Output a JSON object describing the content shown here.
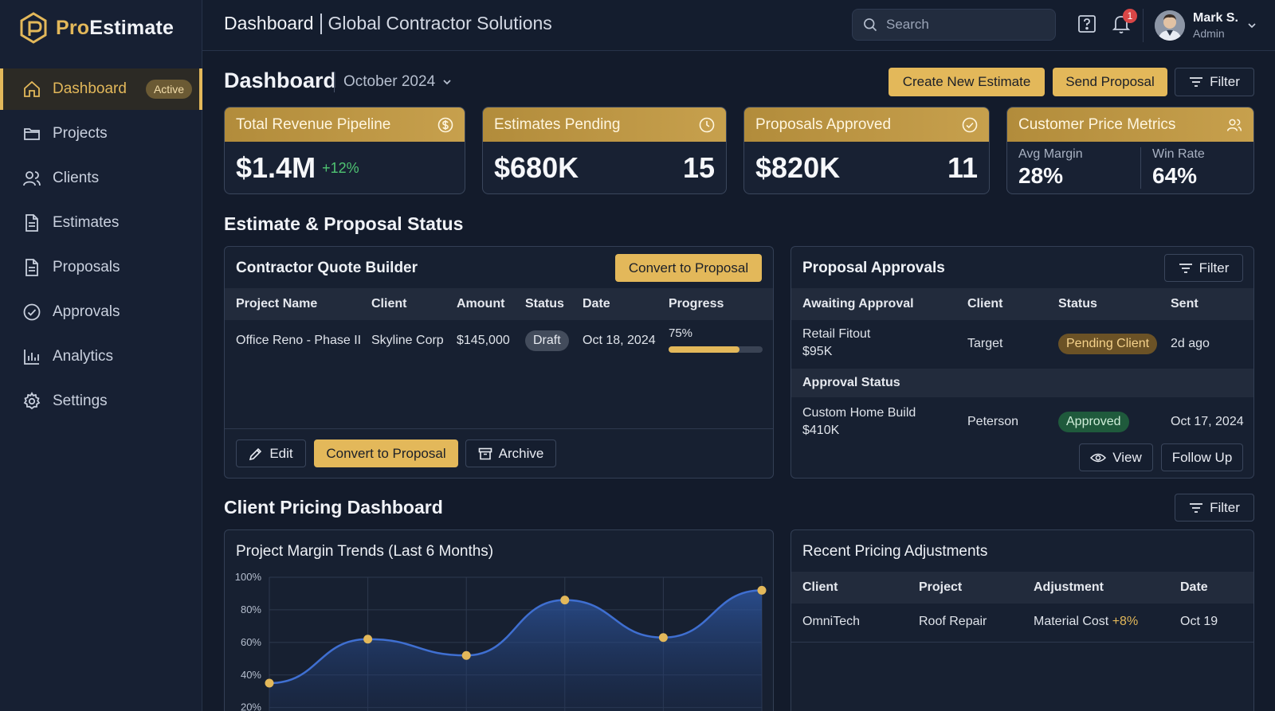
{
  "brand": {
    "prefix": "Pro",
    "suffix": "Estimate"
  },
  "sidebar": {
    "active_badge": "Active",
    "items": [
      {
        "label": "Dashboard",
        "icon": "home-icon"
      },
      {
        "label": "Projects",
        "icon": "folder-icon"
      },
      {
        "label": "Clients",
        "icon": "users-icon"
      },
      {
        "label": "Estimates",
        "icon": "document-icon"
      },
      {
        "label": "Proposals",
        "icon": "document-icon"
      },
      {
        "label": "Approvals",
        "icon": "check-circle-icon"
      },
      {
        "label": "Analytics",
        "icon": "bar-chart-icon"
      },
      {
        "label": "Settings",
        "icon": "gear-icon"
      }
    ]
  },
  "topbar": {
    "title": "Dashboard",
    "org": "Global Contractor Solutions",
    "search_placeholder": "Search",
    "notification_count": "1",
    "user": {
      "name": "Mark S.",
      "role": "Admin"
    }
  },
  "header": {
    "title": "Dashboard",
    "period": "October 2024",
    "create_label": "Create New Estimate",
    "send_label": "Send Proposal",
    "filter_label": "Filter"
  },
  "kpis": {
    "revenue": {
      "title": "Total Revenue Pipeline",
      "value": "$1.4M",
      "delta": "+12%"
    },
    "pending": {
      "title": "Estimates Pending",
      "value": "$680K",
      "count": "15"
    },
    "approved": {
      "title": "Proposals Approved",
      "value": "$820K",
      "count": "11"
    },
    "metrics": {
      "title": "Customer Price Metrics",
      "margin_label": "Avg Margin",
      "margin_value": "28%",
      "win_label": "Win Rate",
      "win_value": "64%"
    }
  },
  "status_section": {
    "title": "Estimate & Proposal Status"
  },
  "quote_builder": {
    "title": "Contractor Quote Builder",
    "convert_label": "Convert to Proposal",
    "columns": [
      "Project Name",
      "Client",
      "Amount",
      "Status",
      "Date",
      "Progress"
    ],
    "row": {
      "project": "Office Reno - Phase II",
      "client": "Skyline Corp",
      "amount": "$145,000",
      "status": "Draft",
      "date": "Oct 18, 2024",
      "progress_label": "75%",
      "progress": 0.75
    },
    "edit_label": "Edit",
    "convert_bottom_label": "Convert to Proposal",
    "archive_label": "Archive"
  },
  "approvals": {
    "title": "Proposal Approvals",
    "filter_label": "Filter",
    "columns": [
      "Awaiting Approval",
      "Client",
      "Status",
      "Sent"
    ],
    "awaiting": {
      "project": "Retail Fitout",
      "amount": "$95K",
      "client": "Target",
      "status": "Pending Client",
      "sent": "2d ago"
    },
    "subhead": "Approval Status",
    "approved": {
      "project": "Custom Home Build",
      "amount": "$410K",
      "client": "Peterson",
      "status": "Approved",
      "sent": "Oct 17, 2024"
    },
    "view_label": "View",
    "follow_label": "Follow Up"
  },
  "pricing_section": {
    "title": "Client Pricing Dashboard",
    "filter_label": "Filter"
  },
  "chart_data": {
    "type": "area",
    "title": "Project Margin Trends (Last 6 Months)",
    "x": [
      1,
      2,
      3,
      4,
      5,
      6
    ],
    "values": [
      35,
      62,
      52,
      86,
      63,
      92
    ],
    "yticks": [
      "100%",
      "80%",
      "60%",
      "40%",
      "20%"
    ],
    "ytick_values": [
      100,
      80,
      60,
      40,
      20
    ],
    "ylim": [
      20,
      100
    ],
    "grid": true,
    "colors": {
      "line": "#3f6fd1",
      "point": "#e3b85a"
    }
  },
  "adjustments": {
    "title": "Recent Pricing Adjustments",
    "columns": [
      "Client",
      "Project",
      "Adjustment",
      "Date"
    ],
    "row": {
      "client": "OmniTech",
      "project": "Roof Repair",
      "adjustment": "Material Cost",
      "delta": "+8%",
      "date": "Oct 19"
    }
  },
  "colors": {
    "accent": "#e3b85a",
    "background": "#131b2b",
    "success": "#4fc472",
    "alert": "#d94646"
  }
}
